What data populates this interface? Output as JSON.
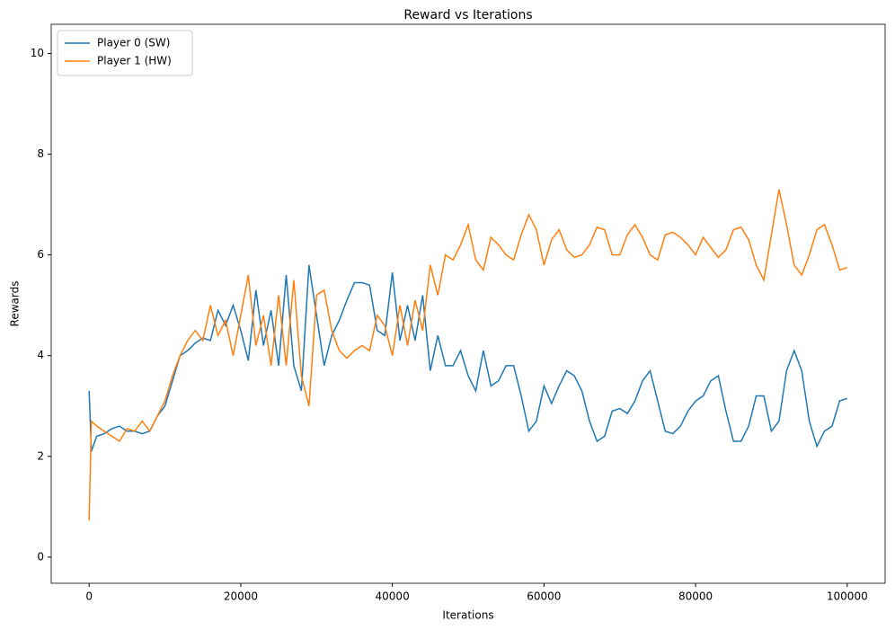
{
  "chart_data": {
    "type": "line",
    "title": "Reward vs Iterations",
    "x_label": "Iterations",
    "y_label": "Rewards",
    "xlim": [
      -5000,
      105000
    ],
    "ylim": [
      -0.52,
      10.58
    ],
    "xticks": [
      0,
      20000,
      40000,
      60000,
      80000,
      100000
    ],
    "yticks": [
      0,
      2,
      4,
      6,
      8,
      10
    ],
    "legend": "upper left",
    "x": [
      0,
      300,
      1000,
      2000,
      3000,
      4000,
      5000,
      6000,
      7000,
      8000,
      9000,
      10000,
      11000,
      12000,
      13000,
      14000,
      15000,
      16000,
      17000,
      18000,
      19000,
      20000,
      21000,
      22000,
      23000,
      24000,
      25000,
      26000,
      27000,
      28000,
      29000,
      30000,
      31000,
      32000,
      33000,
      34000,
      35000,
      36000,
      37000,
      38000,
      39000,
      40000,
      41000,
      42000,
      43000,
      44000,
      45000,
      46000,
      47000,
      48000,
      49000,
      50000,
      51000,
      52000,
      53000,
      54000,
      55000,
      56000,
      57000,
      58000,
      59000,
      60000,
      61000,
      62000,
      63000,
      64000,
      65000,
      66000,
      67000,
      68000,
      69000,
      70000,
      71000,
      72000,
      73000,
      74000,
      75000,
      76000,
      77000,
      78000,
      79000,
      80000,
      81000,
      82000,
      83000,
      84000,
      85000,
      86000,
      87000,
      88000,
      89000,
      90000,
      91000,
      92000,
      93000,
      94000,
      95000,
      96000,
      97000,
      98000,
      99000,
      100000
    ],
    "series": [
      {
        "name": "Player 0 (SW)",
        "color": "#1f77b4",
        "values": [
          3.3,
          2.1,
          2.4,
          2.45,
          2.55,
          2.6,
          2.5,
          2.5,
          2.45,
          2.5,
          2.8,
          3.0,
          3.5,
          4.0,
          4.1,
          4.25,
          4.35,
          4.3,
          4.9,
          4.6,
          5.0,
          4.5,
          3.9,
          5.3,
          4.2,
          4.9,
          3.8,
          5.6,
          3.8,
          3.3,
          5.8,
          4.8,
          3.8,
          4.4,
          4.7,
          5.1,
          5.45,
          5.45,
          5.4,
          4.5,
          4.4,
          5.65,
          4.3,
          5.0,
          4.3,
          5.2,
          3.7,
          4.4,
          3.8,
          3.8,
          4.1,
          3.6,
          3.3,
          4.1,
          3.4,
          3.5,
          3.8,
          3.8,
          3.2,
          2.5,
          2.7,
          3.4,
          3.05,
          3.4,
          3.7,
          3.6,
          3.3,
          2.7,
          2.3,
          2.4,
          2.9,
          2.95,
          2.85,
          3.1,
          3.5,
          3.7,
          3.1,
          2.5,
          2.45,
          2.6,
          2.9,
          3.1,
          3.2,
          3.5,
          3.6,
          2.9,
          2.3,
          2.3,
          2.6,
          3.2,
          3.2,
          2.5,
          2.7,
          3.7,
          4.1,
          3.7,
          2.7,
          2.2,
          2.5,
          2.6,
          3.1,
          3.15
        ]
      },
      {
        "name": "Player 1 (HW)",
        "color": "#ff7f0e",
        "values": [
          0.73,
          2.7,
          2.6,
          2.5,
          2.4,
          2.3,
          2.55,
          2.5,
          2.7,
          2.5,
          2.8,
          3.1,
          3.6,
          4.0,
          4.3,
          4.5,
          4.3,
          5.0,
          4.4,
          4.7,
          4.0,
          4.8,
          5.6,
          4.2,
          4.8,
          3.8,
          5.2,
          3.8,
          5.5,
          3.6,
          3.0,
          5.2,
          5.3,
          4.5,
          4.1,
          3.95,
          4.1,
          4.2,
          4.1,
          4.8,
          4.6,
          4.0,
          5.0,
          4.2,
          5.1,
          4.5,
          5.8,
          5.2,
          6.0,
          5.9,
          6.2,
          6.6,
          5.9,
          5.7,
          6.35,
          6.2,
          6.0,
          5.9,
          6.4,
          6.8,
          6.5,
          5.8,
          6.3,
          6.5,
          6.1,
          5.95,
          6.0,
          6.2,
          6.55,
          6.5,
          6.0,
          6.0,
          6.4,
          6.6,
          6.35,
          6.0,
          5.9,
          6.4,
          6.45,
          6.35,
          6.2,
          6.0,
          6.35,
          6.15,
          5.95,
          6.1,
          6.5,
          6.55,
          6.3,
          5.8,
          5.5,
          6.4,
          7.3,
          6.6,
          5.8,
          5.6,
          6.0,
          6.5,
          6.6,
          6.2,
          5.7,
          5.75
        ]
      }
    ]
  }
}
